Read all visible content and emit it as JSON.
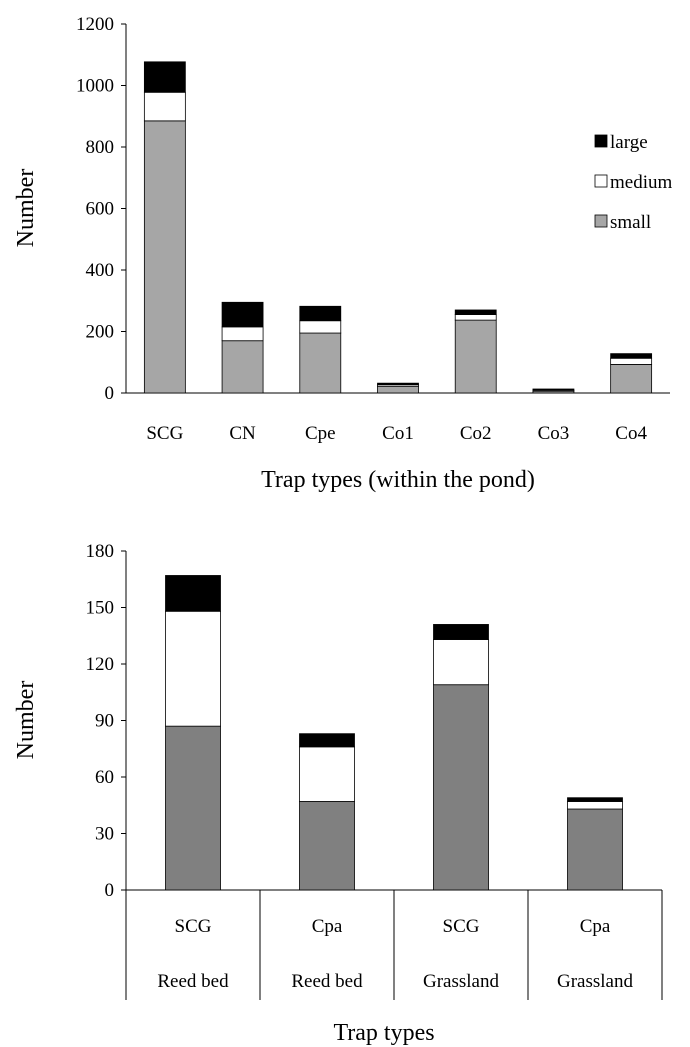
{
  "chart_data": [
    {
      "type": "bar",
      "stacked": true,
      "title": "",
      "xlabel": "Trap types (within the pond)",
      "ylabel": "Number",
      "ylim": [
        0,
        1200
      ],
      "yticks": [
        0,
        200,
        400,
        600,
        800,
        1000,
        1200
      ],
      "grid": false,
      "legend_position": "right",
      "categories": [
        "SCG",
        "CN",
        "Cpe",
        "Co1",
        "Co2",
        "Co3",
        "Co4"
      ],
      "series": [
        {
          "name": "small",
          "color": "#a6a6a6",
          "values": [
            885,
            170,
            195,
            22,
            237,
            6,
            93
          ]
        },
        {
          "name": "medium",
          "color": "#ffffff",
          "values": [
            93,
            45,
            40,
            5,
            18,
            3,
            20
          ]
        },
        {
          "name": "large",
          "color": "#000000",
          "values": [
            99,
            80,
            47,
            5,
            15,
            4,
            15
          ]
        }
      ],
      "legend_order": [
        "large",
        "medium",
        "small"
      ]
    },
    {
      "type": "bar",
      "stacked": true,
      "title": "",
      "xlabel": "Trap types",
      "ylabel": "Number",
      "ylim": [
        0,
        180
      ],
      "yticks": [
        0,
        30,
        60,
        90,
        120,
        150,
        180
      ],
      "grid": false,
      "categories": [
        {
          "trap": "SCG",
          "habitat": "Reed bed"
        },
        {
          "trap": "Cpa",
          "habitat": "Reed bed"
        },
        {
          "trap": "SCG",
          "habitat": "Grassland"
        },
        {
          "trap": "Cpa",
          "habitat": "Grassland"
        }
      ],
      "series": [
        {
          "color": "#808080",
          "values": [
            87,
            47,
            109,
            43
          ]
        },
        {
          "color": "#ffffff",
          "values": [
            61,
            29,
            24,
            4
          ]
        },
        {
          "color": "#000000",
          "values": [
            19,
            7,
            8,
            2
          ]
        }
      ]
    }
  ]
}
